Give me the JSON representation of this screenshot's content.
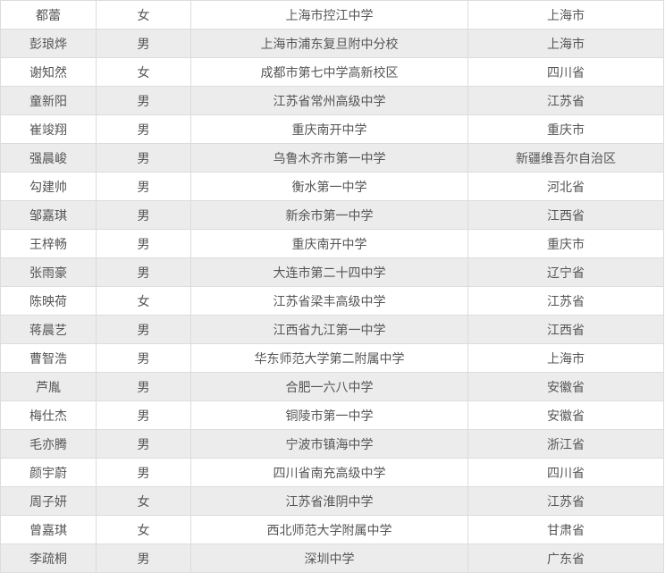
{
  "table": {
    "rows": [
      [
        "都蕾",
        "女",
        "上海市控江中学",
        "上海市"
      ],
      [
        "彭琅烨",
        "男",
        "上海市浦东复旦附中分校",
        "上海市"
      ],
      [
        "谢知然",
        "女",
        "成都市第七中学高新校区",
        "四川省"
      ],
      [
        "童新阳",
        "男",
        "江苏省常州高级中学",
        "江苏省"
      ],
      [
        "崔竣翔",
        "男",
        "重庆南开中学",
        "重庆市"
      ],
      [
        "强晨峻",
        "男",
        "乌鲁木齐市第一中学",
        "新疆维吾尔自治区"
      ],
      [
        "勾建帅",
        "男",
        "衡水第一中学",
        "河北省"
      ],
      [
        "邹嘉琪",
        "男",
        "新余市第一中学",
        "江西省"
      ],
      [
        "王梓畅",
        "男",
        "重庆南开中学",
        "重庆市"
      ],
      [
        "张雨豪",
        "男",
        "大连市第二十四中学",
        "辽宁省"
      ],
      [
        "陈映荷",
        "女",
        "江苏省梁丰高级中学",
        "江苏省"
      ],
      [
        "蒋晨艺",
        "男",
        "江西省九江第一中学",
        "江西省"
      ],
      [
        "曹智浩",
        "男",
        "华东师范大学第二附属中学",
        "上海市"
      ],
      [
        "芦胤",
        "男",
        "合肥一六八中学",
        "安徽省"
      ],
      [
        "梅仕杰",
        "男",
        "铜陵市第一中学",
        "安徽省"
      ],
      [
        "毛亦腾",
        "男",
        "宁波市镇海中学",
        "浙江省"
      ],
      [
        "颜宇蔚",
        "男",
        "四川省南充高级中学",
        "四川省"
      ],
      [
        "周子妍",
        "女",
        "江苏省淮阴中学",
        "江苏省"
      ],
      [
        "曾嘉琪",
        "女",
        "西北师范大学附属中学",
        "甘肃省"
      ],
      [
        "李疏桐",
        "男",
        "深圳中学",
        "广东省"
      ]
    ]
  },
  "colors": {
    "row_alt": "#ececec",
    "border": "#dcdcdc",
    "text": "#555555"
  }
}
